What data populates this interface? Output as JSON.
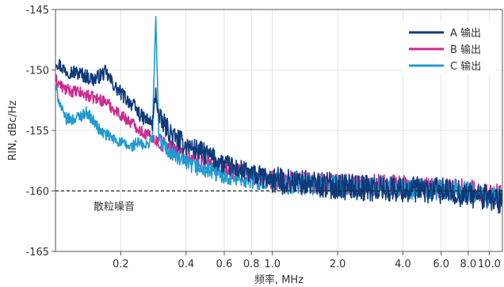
{
  "chart_data": {
    "type": "line",
    "title": "",
    "xlabel": "频率, MHz",
    "ylabel": "RIN, dBc/Hz",
    "x_scale": "log",
    "xlim": [
      0.1,
      11.5
    ],
    "ylim": [
      -165,
      -145
    ],
    "x_ticks": [
      0.2,
      0.4,
      0.6,
      0.8,
      1.0,
      2.0,
      4.0,
      6.0,
      8.0,
      10.0
    ],
    "x_tick_labels": [
      "0.2",
      "0.4",
      "0.6",
      "0.8",
      "1.0",
      "2.0",
      "4.0",
      "6.0",
      "8.0",
      "10.0"
    ],
    "y_ticks": [
      -145,
      -150,
      -155,
      -160,
      -165
    ],
    "y_tick_labels": [
      "-145",
      "-150",
      "-155",
      "-160",
      "-165"
    ],
    "grid": true,
    "legend_position": "top-right",
    "series": [
      {
        "name": "A 输出",
        "color": "#0d3a7a",
        "noise": 1.1,
        "x": [
          0.1,
          0.11,
          0.13,
          0.15,
          0.17,
          0.19,
          0.21,
          0.23,
          0.25,
          0.27,
          0.28,
          0.29,
          0.3,
          0.32,
          0.35,
          0.4,
          0.5,
          0.6,
          0.8,
          1.0,
          1.5,
          2.0,
          3.0,
          4.0,
          6.0,
          8.0,
          10.0,
          11.5
        ],
        "y": [
          -149.2,
          -150.0,
          -150.3,
          -150.8,
          -150.2,
          -151.5,
          -152.3,
          -153.0,
          -153.9,
          -154.2,
          -154.5,
          -151.8,
          -154.0,
          -154.6,
          -155.5,
          -156.2,
          -157.0,
          -157.8,
          -158.6,
          -159.1,
          -159.4,
          -159.6,
          -159.8,
          -159.9,
          -160.0,
          -160.3,
          -160.6,
          -160.9
        ]
      },
      {
        "name": "B 输出",
        "color": "#cc2a8f",
        "noise": 0.9,
        "x": [
          0.1,
          0.11,
          0.13,
          0.15,
          0.17,
          0.19,
          0.21,
          0.23,
          0.25,
          0.28,
          0.3,
          0.35,
          0.4,
          0.5,
          0.6,
          0.8,
          1.0,
          1.5,
          2.0,
          3.0,
          4.0,
          6.0,
          8.0,
          10.0,
          11.5
        ],
        "y": [
          -150.8,
          -151.6,
          -151.9,
          -152.3,
          -152.6,
          -153.4,
          -154.0,
          -154.5,
          -155.1,
          -155.6,
          -156.0,
          -156.5,
          -157.1,
          -157.7,
          -158.2,
          -158.7,
          -159.1,
          -159.3,
          -159.4,
          -159.5,
          -159.6,
          -159.7,
          -159.9,
          -160.2,
          -160.4
        ]
      },
      {
        "name": "C 输出",
        "color": "#1f9bd1",
        "noise": 0.9,
        "x": [
          0.1,
          0.11,
          0.12,
          0.13,
          0.14,
          0.16,
          0.18,
          0.2,
          0.22,
          0.24,
          0.26,
          0.28,
          0.29,
          0.3,
          0.32,
          0.35,
          0.4,
          0.5,
          0.6,
          0.8,
          1.0,
          1.5,
          2.0,
          3.0,
          4.0,
          6.0,
          8.0,
          10.0,
          11.5
        ],
        "y": [
          -151.5,
          -154.0,
          -154.1,
          -153.8,
          -153.5,
          -155.0,
          -155.6,
          -156.0,
          -156.4,
          -156.0,
          -156.4,
          -155.5,
          -145.5,
          -155.8,
          -156.4,
          -157.0,
          -157.8,
          -158.3,
          -158.7,
          -159.1,
          -159.3,
          -159.5,
          -159.6,
          -159.7,
          -159.8,
          -159.9,
          -160.1,
          -160.4,
          -160.6
        ]
      }
    ],
    "reference_line": {
      "y": -160,
      "style": "dashed",
      "label": "散粒噪音"
    }
  }
}
